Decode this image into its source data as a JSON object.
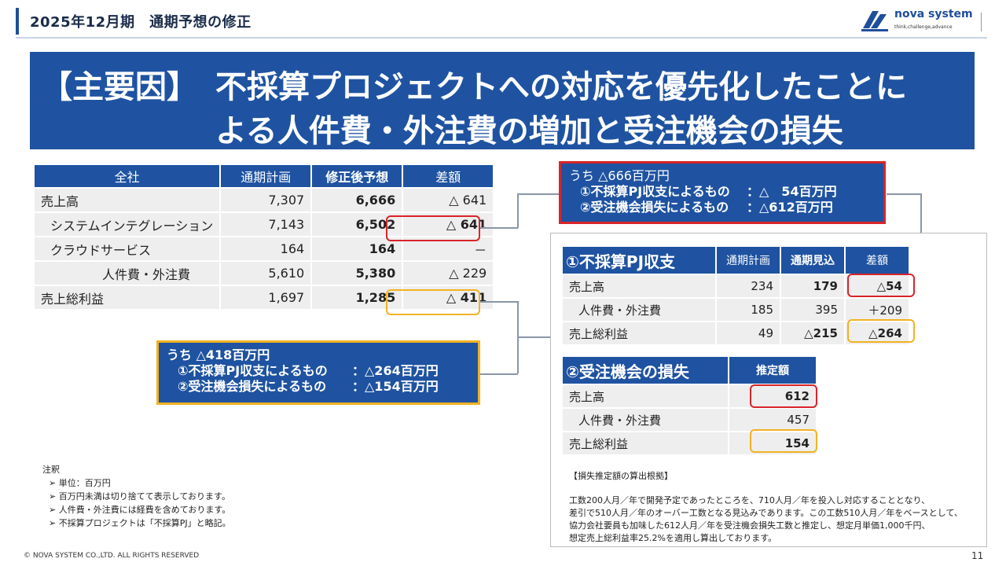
{
  "header": {
    "title": "2025年12月期　通期予想の修正",
    "logo_name": "nova system",
    "logo_tagline": "think,challenge,advance"
  },
  "banner": {
    "tag": "【主要因】",
    "line1": "不採算プロジェクトへの対応を優先化したことに",
    "line2": "よる人件費・外注費の増加と受注機会の損失"
  },
  "main_table": {
    "headers": [
      "全社",
      "通期計画",
      "修正後予想",
      "差額"
    ],
    "rows": [
      {
        "label": "売上高",
        "plan": "7,307",
        "revised": "6,666",
        "diff": "△ 641"
      },
      {
        "label": "システムインテグレーション",
        "plan": "7,143",
        "revised": "6,502",
        "diff": "△ 641"
      },
      {
        "label": "クラウドサービス",
        "plan": "164",
        "revised": "164",
        "diff": "－"
      },
      {
        "label": "人件費・外注費",
        "plan": "5,610",
        "revised": "5,380",
        "diff": "△ 229"
      },
      {
        "label": "売上総利益",
        "plan": "1,697",
        "revised": "1,285",
        "diff": "△ 411"
      }
    ]
  },
  "callout_red": {
    "title": "うち △666百万円",
    "items": [
      {
        "label": "①不採算PJ収支によるもの",
        "value": "：△　54百万円"
      },
      {
        "label": "②受注機会損失によるもの",
        "value": "：△612百万円"
      }
    ]
  },
  "callout_yellow": {
    "title": "うち △418百万円",
    "items": [
      {
        "label": "①不採算PJ収支によるもの",
        "value": "：△264百万円"
      },
      {
        "label": "②受注機会損失によるもの",
        "value": "：△154百万円"
      }
    ]
  },
  "pj_table": {
    "headers": [
      "①不採算PJ収支",
      "通期計画",
      "通期見込",
      "差額"
    ],
    "rows": [
      {
        "label": "売上高",
        "plan": "234",
        "forecast": "179",
        "diff": "△54"
      },
      {
        "label": "人件費・外注費",
        "plan": "185",
        "forecast": "395",
        "diff": "＋209"
      },
      {
        "label": "売上総利益",
        "plan": "49",
        "forecast": "△215",
        "diff": "△264"
      }
    ]
  },
  "loss_table": {
    "headers": [
      "②受注機会の損失",
      "推定額"
    ],
    "rows": [
      {
        "label": "売上高",
        "value": "612"
      },
      {
        "label": "人件費・外注費",
        "value": "457"
      },
      {
        "label": "売上総利益",
        "value": "154"
      }
    ]
  },
  "basis": {
    "title": "【損失推定額の算出根拠】",
    "lines": [
      "工数200人月／年で開発予定であったところを、710人月／年を投入し対応することとなり、",
      "差引で510人月／年のオーバー工数となる見込みであります。この工数510人月／年をベースとして、",
      "協力会社要員も加味した612人月／年を受注機会損失工数と推定し、想定月単価1,000千円、",
      "想定売上総利益率25.2%を適用し算出しております。"
    ]
  },
  "notes": {
    "title": "注釈",
    "items": [
      "単位：百万円",
      "百万円未満は切り捨てて表示しております。",
      "人件費・外注費には経費を含めております。",
      "不採算プロジェクトは「不採算PJ」と略記。"
    ]
  },
  "footer": {
    "copyright": "© NOVA SYSTEM CO.,LTD. ALL RIGHTS RESERVED",
    "page": "11"
  }
}
